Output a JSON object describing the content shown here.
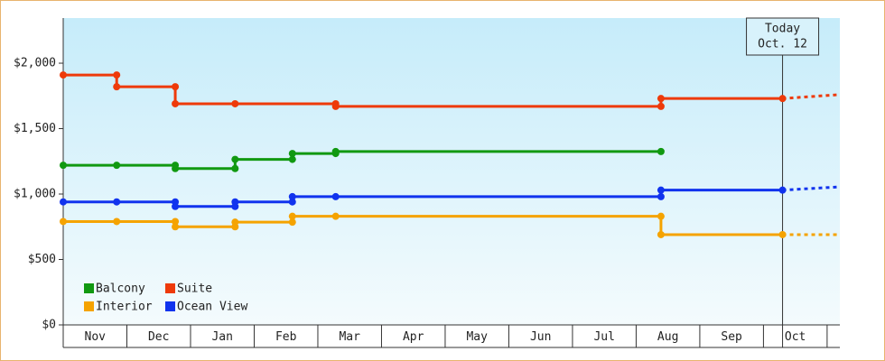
{
  "chart_data": {
    "type": "step-line",
    "categories": [
      "Nov",
      "Dec",
      "Jan",
      "Feb",
      "Mar",
      "Apr",
      "May",
      "Jun",
      "Jul",
      "Aug",
      "Sep",
      "Oct"
    ],
    "xlim": [
      0,
      12.2
    ],
    "ylim": [
      0,
      2345
    ],
    "yticks": [
      {
        "value": 0,
        "label": "$0"
      },
      {
        "value": 500,
        "label": "$500"
      },
      {
        "value": 1000,
        "label": "$1,000"
      },
      {
        "value": 1500,
        "label": "$1,500"
      },
      {
        "value": 2000,
        "label": "$2,000"
      }
    ],
    "legend": "bottom-left",
    "annotation": {
      "text": [
        "Today",
        "Oct. 12"
      ],
      "x": 11.3
    },
    "series": [
      {
        "name": "Balcony",
        "color": "#119911",
        "x": [
          0,
          0.84,
          1.76,
          1.76,
          2.7,
          2.7,
          3.6,
          3.6,
          4.28,
          4.28,
          9.39
        ],
        "values": [
          1220,
          1220,
          1220,
          1195,
          1195,
          1265,
          1265,
          1310,
          1310,
          1325,
          1325
        ]
      },
      {
        "name": "Suite",
        "color": "#ee3a0a",
        "x": [
          0,
          0.84,
          0.84,
          1.76,
          1.76,
          2.7,
          4.28,
          4.28,
          9.39,
          9.39,
          11.3
        ],
        "values": [
          1910,
          1910,
          1820,
          1820,
          1690,
          1690,
          1690,
          1670,
          1670,
          1730,
          1730
        ],
        "forecast": {
          "x": [
            11.3,
            12.2
          ],
          "values": [
            1730,
            1760
          ]
        }
      },
      {
        "name": "Interior",
        "color": "#f5a300",
        "x": [
          0,
          0.84,
          1.76,
          1.76,
          2.7,
          2.7,
          3.6,
          3.6,
          4.28,
          9.39,
          9.39,
          11.3
        ],
        "values": [
          790,
          790,
          790,
          750,
          750,
          785,
          785,
          830,
          830,
          830,
          690,
          690
        ],
        "forecast": {
          "x": [
            11.3,
            12.2
          ],
          "values": [
            690,
            690
          ]
        }
      },
      {
        "name": "Ocean View",
        "color": "#1133ee",
        "x": [
          0,
          0.84,
          1.76,
          1.76,
          2.7,
          2.7,
          3.6,
          3.6,
          4.28,
          9.39,
          9.39,
          11.3
        ],
        "values": [
          940,
          940,
          940,
          905,
          905,
          940,
          940,
          980,
          980,
          980,
          1030,
          1030
        ],
        "forecast": {
          "x": [
            11.3,
            12.2
          ],
          "values": [
            1030,
            1055
          ]
        }
      }
    ]
  }
}
